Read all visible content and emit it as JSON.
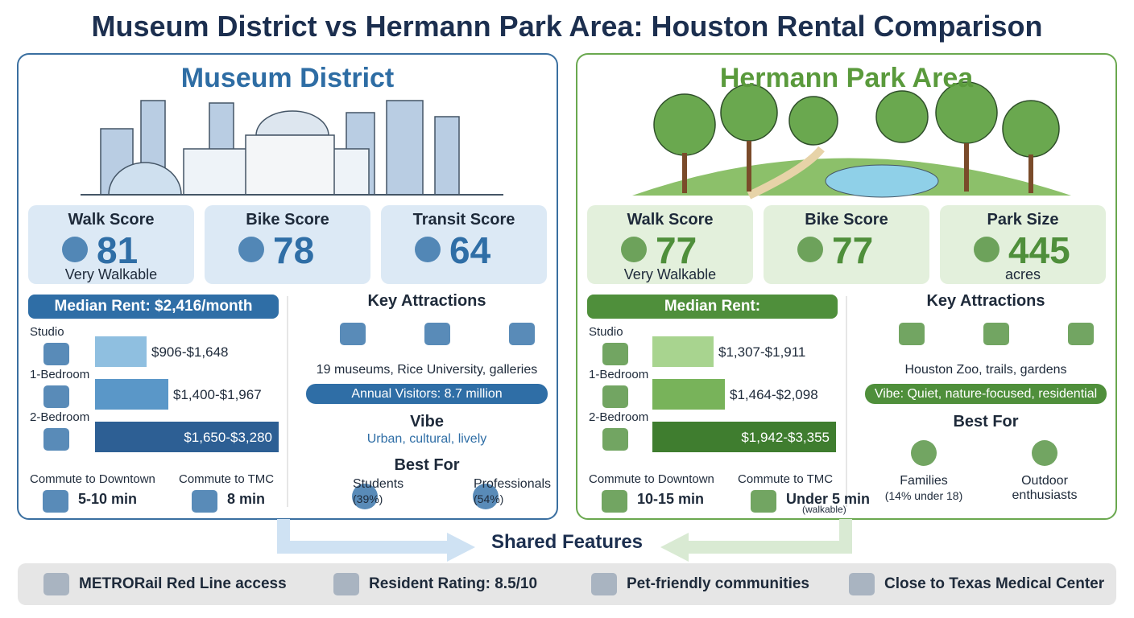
{
  "title": "Museum District vs Hermann Park Area: Houston Rental Comparison",
  "museum": {
    "heading": "Museum District",
    "scores": [
      {
        "label": "Walk Score",
        "value": 81,
        "note": "Very Walkable"
      },
      {
        "label": "Bike Score",
        "value": 78
      },
      {
        "label": "Transit Score",
        "value": 64
      }
    ],
    "median_rent": "Median Rent: $2,416/month",
    "rents": [
      {
        "type": "Studio",
        "range": "$906-$1,648"
      },
      {
        "type": "1-Bedroom",
        "range": "$1,400-$1,967"
      },
      {
        "type": "2-Bedroom",
        "range": "$1,650-$3,280"
      }
    ],
    "commutes": [
      {
        "label": "Commute to Downtown",
        "time": "5-10 min"
      },
      {
        "label": "Commute to TMC",
        "time": "8 min"
      }
    ],
    "attractions": {
      "heading": "Key Attractions",
      "text": "19 museums, Rice University, galleries",
      "highlight": "Annual Visitors: 8.7 million"
    },
    "vibe": {
      "heading": "Vibe",
      "text": "Urban, cultural, lively"
    },
    "best_for": {
      "heading": "Best For",
      "groups": [
        {
          "label": "Students",
          "share": "(39%)"
        },
        {
          "label": "Professionals",
          "share": "(54%)"
        }
      ]
    }
  },
  "hermann": {
    "heading": "Hermann Park Area",
    "scores": [
      {
        "label": "Walk Score",
        "value": 77,
        "note": "Very Walkable"
      },
      {
        "label": "Bike Score",
        "value": 77
      },
      {
        "label": "Park Size",
        "value": 445,
        "note": "acres"
      }
    ],
    "median_rent": "Median Rent:",
    "rents": [
      {
        "type": "Studio",
        "range": "$1,307-$1,911"
      },
      {
        "type": "1-Bedroom",
        "range": "$1,464-$2,098"
      },
      {
        "type": "2-Bedroom",
        "range": "$1,942-$3,355"
      }
    ],
    "commutes": [
      {
        "label": "Commute to Downtown",
        "time": "10-15 min"
      },
      {
        "label": "Commute to TMC",
        "time": "Under 5 min",
        "note": "(walkable)"
      }
    ],
    "attractions": {
      "heading": "Key Attractions",
      "text": "Houston Zoo, trails, gardens",
      "highlight": "Vibe: Quiet, nature-focused, residential"
    },
    "best_for": {
      "heading": "Best For",
      "groups": [
        {
          "label": "Families",
          "share": "(14% under 18)"
        },
        {
          "label": "Outdoor enthusiasts"
        }
      ]
    }
  },
  "shared": {
    "heading": "Shared Features",
    "items": [
      "METRORail Red Line access",
      "Resident Rating: 8.5/10",
      "Pet-friendly communities",
      "Close to Texas Medical Center"
    ]
  }
}
